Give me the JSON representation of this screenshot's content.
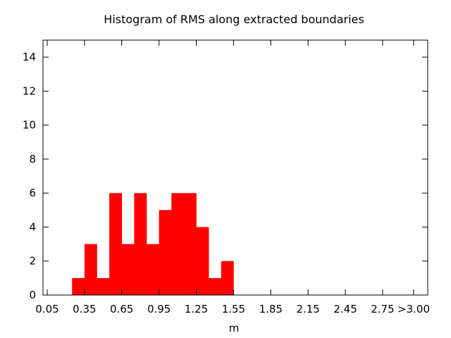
{
  "chart_data": {
    "type": "bar",
    "title": "Histogram of RMS along extracted boundaries",
    "xlabel": "m",
    "ylabel": "",
    "x_tick_labels": [
      "0.05",
      "0.35",
      "0.65",
      "0.95",
      "1.25",
      "1.55",
      "1.85",
      "2.15",
      "2.45",
      "2.75",
      ">3.00"
    ],
    "x_ticks": [
      0.05,
      0.35,
      0.65,
      0.95,
      1.25,
      1.55,
      1.85,
      2.15,
      2.45,
      2.75,
      3.0
    ],
    "xlim": [
      0.0,
      3.0
    ],
    "y_ticks": [
      0,
      2,
      4,
      6,
      8,
      10,
      12,
      14
    ],
    "ylim": [
      0,
      15
    ],
    "bin_width": 0.1,
    "bins": [
      {
        "x": 0.3,
        "value": 1
      },
      {
        "x": 0.4,
        "value": 3
      },
      {
        "x": 0.5,
        "value": 1
      },
      {
        "x": 0.6,
        "value": 6
      },
      {
        "x": 0.7,
        "value": 3
      },
      {
        "x": 0.8,
        "value": 6
      },
      {
        "x": 0.9,
        "value": 3
      },
      {
        "x": 1.0,
        "value": 5
      },
      {
        "x": 1.1,
        "value": 6
      },
      {
        "x": 1.2,
        "value": 6
      },
      {
        "x": 1.3,
        "value": 4
      },
      {
        "x": 1.4,
        "value": 1
      },
      {
        "x": 1.5,
        "value": 2
      }
    ],
    "bar_color": "#ff0000",
    "grid": false,
    "legend": "none"
  }
}
